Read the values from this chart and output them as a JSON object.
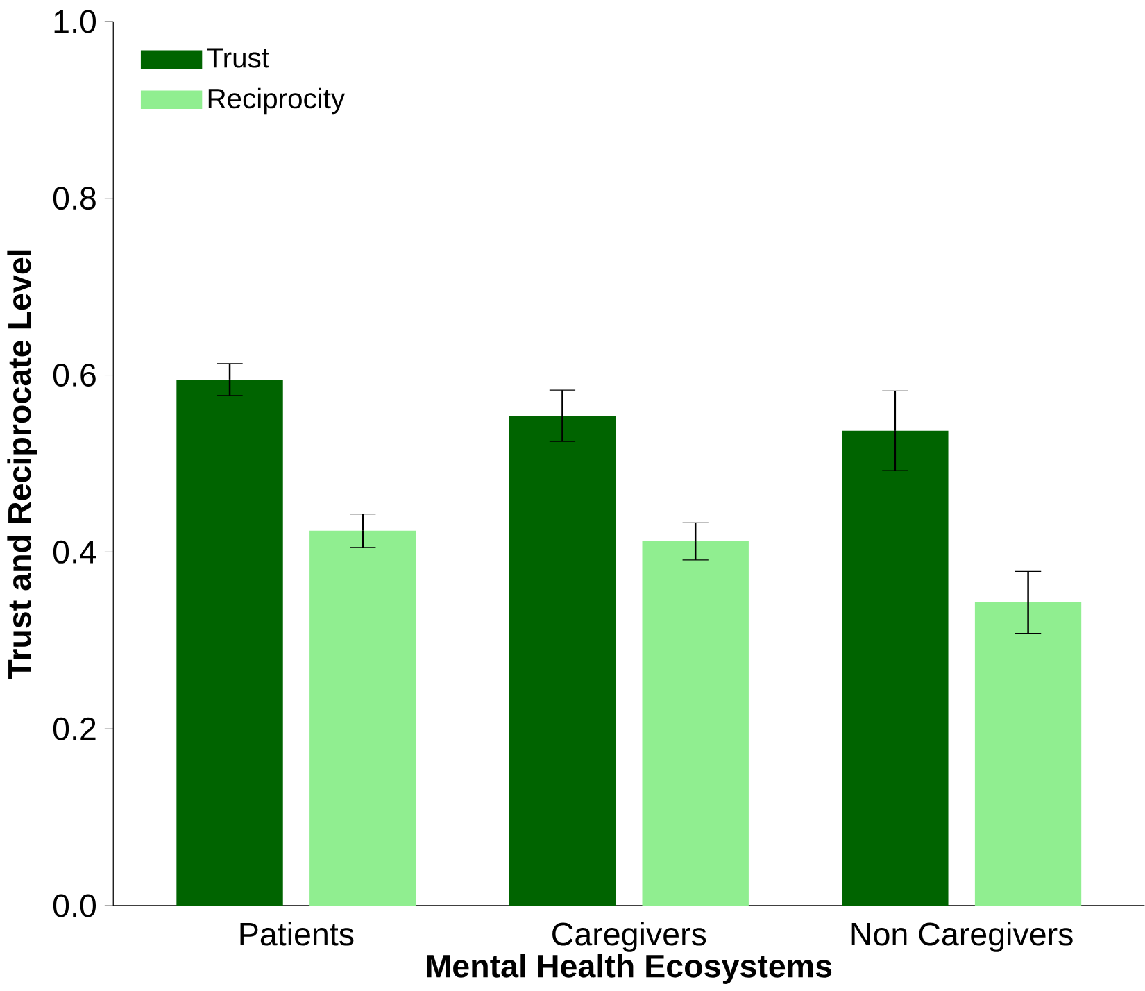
{
  "chart_data": {
    "type": "bar",
    "xlabel": "Mental Health Ecosystems",
    "ylabel": "Trust and Reciprocate Level",
    "categories": [
      "Patients",
      "Caregivers",
      "Non Caregivers"
    ],
    "series": [
      {
        "name": "Trust",
        "color": "#006400",
        "values": [
          0.595,
          0.554,
          0.537
        ],
        "errors": [
          0.018,
          0.029,
          0.045
        ]
      },
      {
        "name": "Reciprocity",
        "color": "#90ee90",
        "values": [
          0.424,
          0.412,
          0.343
        ],
        "errors": [
          0.019,
          0.021,
          0.035
        ]
      }
    ],
    "ylim": [
      0,
      1.0
    ],
    "yticks": [
      {
        "value": 0,
        "label": "0.0"
      },
      0.2,
      0.4,
      0.6,
      0.8,
      {
        "value": 1.0,
        "label": "1.0"
      }
    ],
    "legend": "top left",
    "grid": false
  }
}
